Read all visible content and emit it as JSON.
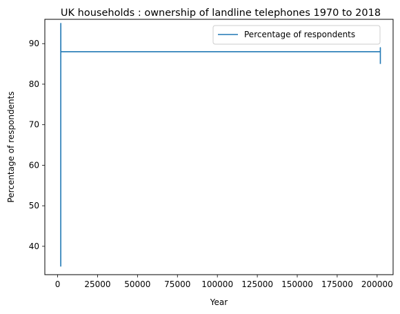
{
  "chart_data": {
    "type": "line",
    "title": "UK households : ownership of landline telephones 1970 to 2018",
    "xlabel": "Year",
    "ylabel": "Percentage of respondents",
    "legend": {
      "placement": "top-right",
      "entries": [
        "Percentage of respondents"
      ]
    },
    "grid": false,
    "xlim": [
      -8000,
      210000
    ],
    "ylim": [
      33,
      96
    ],
    "x_ticks": [
      0,
      25000,
      50000,
      75000,
      100000,
      125000,
      150000,
      175000,
      200000
    ],
    "y_ticks": [
      40,
      50,
      60,
      70,
      80,
      90
    ],
    "series": [
      {
        "name": "Percentage of respondents",
        "color": "#1f77b4",
        "x": [
          1970,
          1975,
          1980,
          1985,
          1990,
          1995,
          2000,
          2005,
          2010,
          2012,
          202012,
          202012,
          202012
        ],
        "y": [
          35,
          52,
          72,
          81,
          87,
          92,
          95,
          93,
          89,
          88,
          88,
          89,
          85
        ]
      }
    ]
  }
}
